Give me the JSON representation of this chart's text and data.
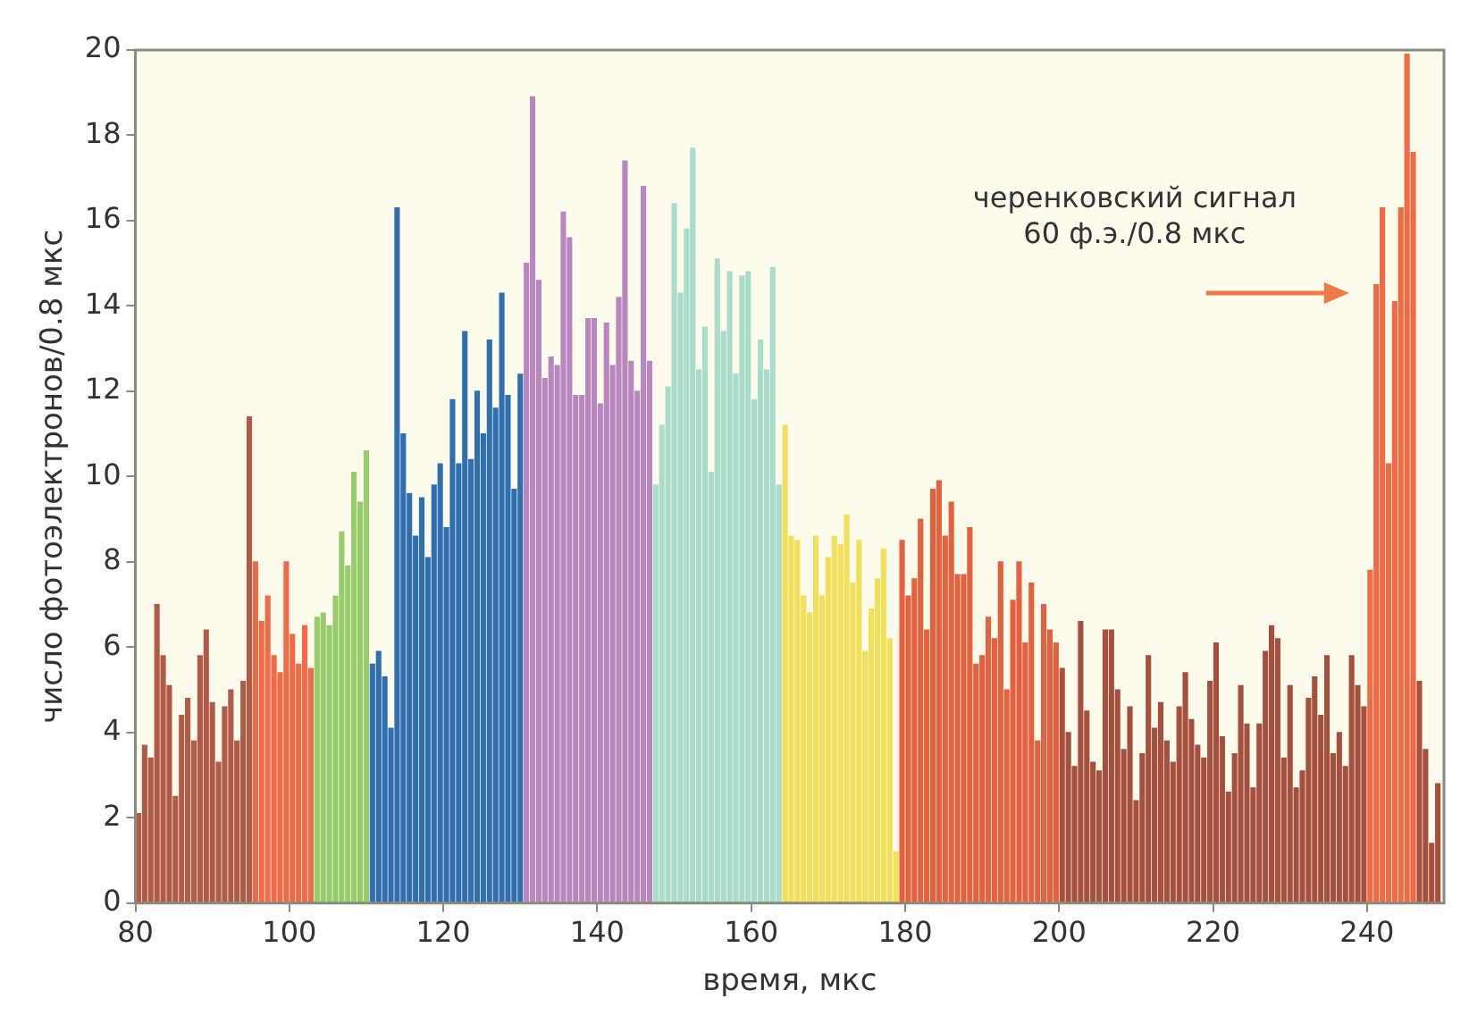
{
  "chart_data": {
    "type": "bar",
    "xlabel": "время, мкс",
    "ylabel": "число фотоэлектронов/0.8 мкс",
    "xlim": [
      80,
      250
    ],
    "xticks": [
      80,
      100,
      120,
      140,
      160,
      180,
      200,
      220,
      240
    ],
    "ylim": [
      0,
      20
    ],
    "yticks": [
      0,
      2,
      4,
      6,
      8,
      10,
      12,
      14,
      16,
      18,
      20
    ],
    "legend": false,
    "annotations": [
      {
        "text": "черенковский сигнал\n60 ф.э./0.8 мкс",
        "x": 240,
        "y": 14.3
      }
    ],
    "series": [
      {
        "color": "#b05a48",
        "x": [
          80.4,
          81.2,
          82,
          82.8,
          83.6,
          84.4,
          85.2,
          86,
          86.8,
          87.6,
          88.4,
          89.2,
          90,
          90.8,
          91.6,
          92.4,
          93.2,
          94,
          94.8
        ],
        "values": [
          2.1,
          3.7,
          3.4,
          7,
          5.8,
          5.1,
          2.5,
          4.4,
          4.8,
          3.8,
          5.8,
          6.4,
          4.7,
          3.3,
          4.6,
          5,
          3.8,
          5.2,
          11.4
        ]
      },
      {
        "color": "#ee6a48",
        "x": [
          95.6,
          96.4,
          97.2,
          98,
          98.8,
          99.6,
          100.4,
          101.2,
          102,
          102.8
        ],
        "values": [
          8,
          6.6,
          7.2,
          5.8,
          5.4,
          8,
          6.3,
          5.6,
          6.5,
          5.5
        ]
      },
      {
        "color": "#96cc6c",
        "x": [
          103.6,
          104.4,
          105.2,
          106,
          106.8,
          107.6,
          108.4,
          109.2,
          110
        ],
        "values": [
          6.7,
          6.8,
          6.5,
          7.2,
          8.7,
          7.9,
          10.1,
          9.4,
          10.6
        ]
      },
      {
        "color": "#2f6eb0",
        "x": [
          110.8,
          111.6,
          112.4,
          113.2,
          114,
          114.8,
          115.6,
          116.4,
          117.2,
          118,
          118.8,
          119.6,
          120.4,
          121.2,
          122,
          122.8,
          123.6,
          124.4,
          125.2,
          126,
          126.8,
          127.6,
          128.4,
          129.2,
          130
        ],
        "values": [
          5.6,
          5.9,
          5.3,
          4.1,
          16.3,
          11,
          9.6,
          8.6,
          9.5,
          8.1,
          9.8,
          10.3,
          8.8,
          11.8,
          10.3,
          13.4,
          10.4,
          12,
          11,
          13.2,
          11.6,
          14.3,
          11.9,
          9.7,
          12.4
        ]
      },
      {
        "color": "#b987bf",
        "x": [
          130.8,
          131.6,
          132.4,
          133.2,
          134,
          134.8,
          135.6,
          136.4,
          137.2,
          138,
          138.8,
          139.6,
          140.4,
          141.2,
          142,
          142.8,
          143.6,
          144.4,
          145.2,
          146,
          146.8
        ],
        "values": [
          15,
          18.9,
          14.6,
          12.3,
          12.8,
          12.6,
          16.2,
          15.6,
          11.9,
          11.9,
          13.7,
          13.7,
          11.7,
          13.6,
          12.6,
          14.2,
          17.4,
          12.7,
          12,
          16.8,
          12.7
        ]
      },
      {
        "color": "#a9dccb",
        "x": [
          147.6,
          148.4,
          149.2,
          150,
          150.8,
          151.6,
          152.4,
          153.2,
          154,
          154.8,
          155.6,
          156.4,
          157.2,
          158,
          158.8,
          159.6,
          160.4,
          161.2,
          162,
          162.8,
          163.6
        ],
        "values": [
          9.8,
          11.2,
          12.1,
          16.4,
          14.3,
          15.8,
          17.7,
          12.5,
          13.5,
          10.1,
          15.1,
          13.4,
          14.8,
          12.4,
          14.7,
          14.8,
          11.8,
          13.2,
          12.5,
          14.9,
          9.8
        ]
      },
      {
        "color": "#f2df5c",
        "x": [
          164.4,
          165.2,
          166,
          166.8,
          167.6,
          168.4,
          169.2,
          170,
          170.8,
          171.6,
          172.4,
          173.2,
          174,
          174.8,
          175.6,
          176.4,
          177.2,
          178,
          178.8
        ],
        "values": [
          11.2,
          8.6,
          8.5,
          7.2,
          6.8,
          8.6,
          7.2,
          8.1,
          8.6,
          8.4,
          9.1,
          7.5,
          8.5,
          5.9,
          6.9,
          7.6,
          8.3,
          6.2,
          1.2
        ]
      },
      {
        "color": "#e4603e",
        "x": [
          179.6,
          180.4,
          181.2,
          182,
          182.8,
          183.6,
          184.4,
          185.2,
          186,
          186.8,
          187.6,
          188.4,
          189.2,
          190,
          190.8,
          191.6,
          192.4,
          193.2,
          194,
          194.8,
          195.6,
          196.4,
          197.2,
          198,
          198.8,
          199.6
        ],
        "values": [
          8.5,
          7.2,
          7.6,
          9,
          6.4,
          9.7,
          9.9,
          8.6,
          9.4,
          7.7,
          7.7,
          8.8,
          5.6,
          5.8,
          6.7,
          6.2,
          8,
          5,
          7.1,
          8,
          6.1,
          7.5,
          3.8,
          7,
          6.4,
          6.1
        ]
      },
      {
        "color": "#a5503f",
        "x": [
          200.4,
          201.2,
          202,
          202.8,
          203.6,
          204.4,
          205.2,
          206,
          206.8,
          207.6,
          208.4,
          209.2,
          210,
          210.8,
          211.6,
          212.4,
          213.2,
          214,
          214.8,
          215.6,
          216.4,
          217.2,
          218,
          218.8,
          219.6,
          220.4,
          221.2,
          222,
          222.8,
          223.6,
          224.4,
          225.2,
          226,
          226.8,
          227.6,
          228.4,
          229.2,
          230,
          230.8,
          231.6,
          232.4,
          233.2,
          234,
          234.8,
          235.6,
          236.4,
          237.2,
          238,
          238.8,
          239.6
        ],
        "values": [
          5.5,
          4,
          3.2,
          6.6,
          4.5,
          3.3,
          3.1,
          6.4,
          6.4,
          5,
          3.6,
          4.6,
          2.4,
          3.5,
          5.8,
          4.1,
          4.7,
          3.8,
          3.3,
          4.6,
          5.4,
          4.3,
          3.7,
          3.4,
          5.2,
          6.1,
          3.9,
          2.6,
          3.5,
          5.1,
          4.2,
          2.7,
          4.2,
          5.9,
          6.5,
          6.2,
          3.4,
          5.1,
          2.7,
          3.1,
          4.8,
          5.3,
          4.4,
          5.8,
          3.5,
          4,
          3.2,
          5.8,
          5.1,
          4.6
        ]
      },
      {
        "color": "#ef6a45",
        "x": [
          240.4,
          241.2,
          242,
          242.8,
          243.6,
          244.4,
          245.2,
          246
        ],
        "values": [
          7.8,
          14.5,
          16.3,
          10.3,
          14.1,
          16.3,
          19.9,
          17.6
        ]
      },
      {
        "color": "#a5503f",
        "x": [
          246.8,
          247.6,
          248.4,
          249.2
        ],
        "values": [
          5.2,
          3.6,
          1.4,
          2.8
        ]
      }
    ]
  }
}
